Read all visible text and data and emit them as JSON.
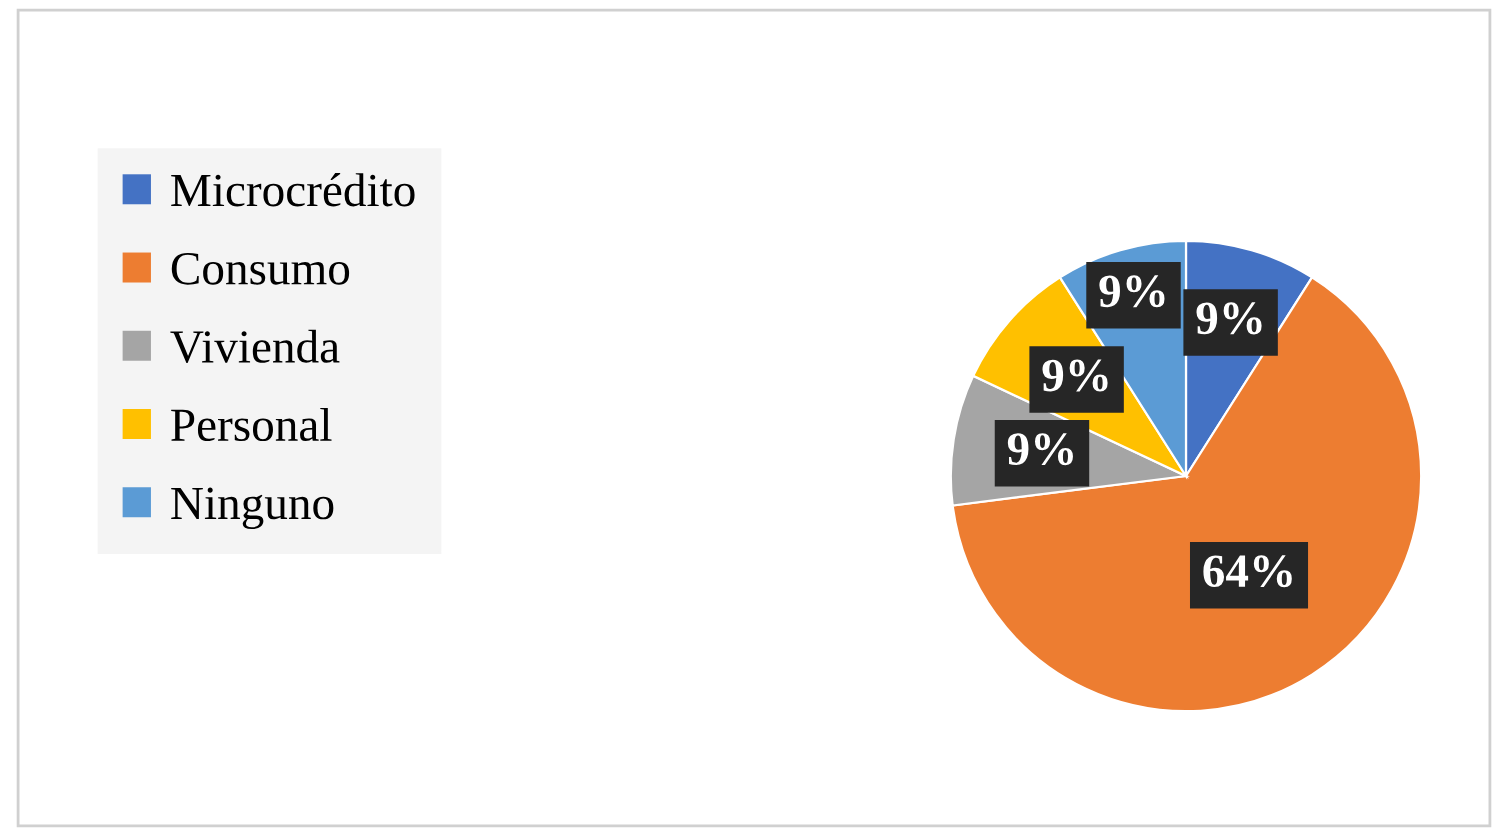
{
  "chart_data": {
    "type": "pie",
    "categories": [
      "Microcrédito",
      "Consumo",
      "Vivienda",
      "Personal",
      "Ninguno"
    ],
    "values": [
      9,
      64,
      9,
      9,
      9
    ],
    "colors": [
      "#4472c4",
      "#ed7d31",
      "#a5a5a5",
      "#ffc000",
      "#5b9bd5"
    ],
    "value_labels": [
      "9%",
      "64%",
      "9%",
      "9%",
      "9%"
    ],
    "legend": "left"
  }
}
